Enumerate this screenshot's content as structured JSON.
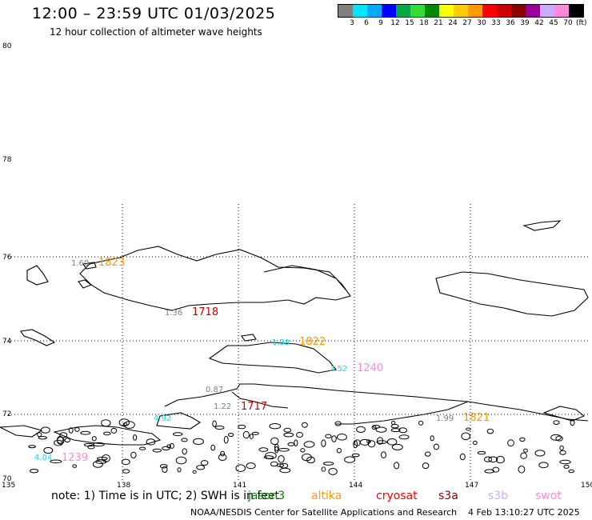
{
  "header": {
    "title": "12:00 – 23:59 UTC 01/03/2025",
    "subtitle": "12 hour collection of altimeter wave heights"
  },
  "legend": {
    "colors": [
      "#7f7f7f",
      "#00e5ff",
      "#00aaff",
      "#0000ff",
      "#00aa44",
      "#33dd33",
      "#008800",
      "#ffff00",
      "#ffcc00",
      "#ff9900",
      "#ff0000",
      "#cc0000",
      "#880000",
      "#990099",
      "#ccaaff",
      "#ff88dd",
      "#000000"
    ],
    "labels": [
      "3",
      "6",
      "9",
      "12",
      "15",
      "18",
      "21",
      "24",
      "27",
      "30",
      "33",
      "36",
      "39",
      "42",
      "45",
      "70"
    ],
    "unit": "(ft)"
  },
  "map": {
    "lat_labels": [
      "80",
      "78",
      "76",
      "74",
      "72",
      "70"
    ],
    "lon_labels": [
      "135",
      "138",
      "141",
      "144",
      "147",
      "150"
    ],
    "observations": [
      {
        "text": "1.60",
        "color": "#7f7f7f"
      },
      {
        "text": "1823",
        "color": "#ff9900"
      },
      {
        "text": "1.36",
        "color": "#7f7f7f"
      },
      {
        "text": "1718",
        "color": "#cc0000"
      },
      {
        "text": "1.39",
        "color": "#00e5ff"
      },
      {
        "text": "1822",
        "color": "#ff9900"
      },
      {
        "text": "3.52",
        "color": "#00e5ff"
      },
      {
        "text": "1240",
        "color": "#ff88dd"
      },
      {
        "text": "0.87",
        "color": "#7f7f7f"
      },
      {
        "text": "1.22",
        "color": "#7f7f7f"
      },
      {
        "text": "1717",
        "color": "#cc0000"
      },
      {
        "text": "4.92",
        "color": "#00e5ff"
      },
      {
        "text": "1.99",
        "color": "#7f7f7f"
      },
      {
        "text": "1821",
        "color": "#ff9900"
      },
      {
        "text": "4.04",
        "color": "#00e5ff"
      },
      {
        "text": "1239",
        "color": "#ff88dd"
      }
    ]
  },
  "note": "note:  1) Time is in UTC; 2) SWH is in feet",
  "satellites": [
    {
      "name": "jason3",
      "color": "#008800"
    },
    {
      "name": "altika",
      "color": "#ff9900"
    },
    {
      "name": "cryosat",
      "color": "#ff0000"
    },
    {
      "name": "s3a",
      "color": "#880000"
    },
    {
      "name": "s3b",
      "color": "#ccaaff"
    },
    {
      "name": "swot",
      "color": "#ff88dd"
    }
  ],
  "footer": {
    "source": "NOAA/NESDIS Center for Satellite Applications and Research",
    "timestamp": "4 Feb 13:10:27 UTC 2025"
  }
}
